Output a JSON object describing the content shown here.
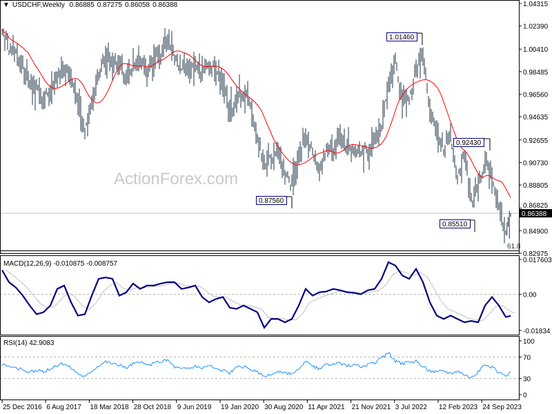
{
  "header": {
    "symbol": "USDCHF,Weekly",
    "open": "0.86885",
    "high": "0.87275",
    "low": "0.86058",
    "close": "0.86388"
  },
  "watermark": "ActionForex.com",
  "colors": {
    "bars": "#1f3346",
    "ma": "#ff0000",
    "macd": "#000080",
    "signal": "#c0c0c0",
    "rsi": "#1e90ff",
    "current_price_bg": "#000000"
  },
  "chart_data": [
    {
      "type": "bar",
      "title": "USDCHF,Weekly",
      "ylim": [
        0.82975,
        1.04315
      ],
      "y_ticks": [
        "1.04315",
        "1.02390",
        "1.00410",
        "0.98485",
        "0.96560",
        "0.94635",
        "0.92655",
        "0.90730",
        "0.88805",
        "0.86825",
        "0.84900",
        "0.82975"
      ],
      "current_price": "0.86388",
      "x_tick_labels": [
        "25 Dec 2016",
        "6 Aug 2017",
        "18 Mar 2018",
        "28 Oct 2018",
        "9 Jun 2019",
        "19 Jan 2020",
        "30 Aug 2020",
        "11 Apr 2021",
        "21 Nov 2021",
        "3 Jul 2022",
        "12 Feb 2023",
        "24 Sep 2023"
      ],
      "close": [
        1.0225,
        1.0049,
        1.0019,
        0.9931,
        0.9754,
        0.9695,
        0.9636,
        0.9695,
        0.9813,
        0.9872,
        0.9813,
        0.9577,
        0.9342,
        0.9577,
        0.9813,
        0.999,
        0.9931,
        0.9902,
        0.9784,
        0.9931,
        0.999,
        0.9872,
        0.996,
        1.0019,
        1.0166,
        0.999,
        0.9902,
        0.9872,
        0.9902,
        0.9872,
        0.9931,
        0.9872,
        0.9754,
        0.9518,
        0.9636,
        0.9695,
        0.9577,
        0.9283,
        0.9077,
        0.9106,
        0.9195,
        0.8989,
        0.89,
        0.9106,
        0.9342,
        0.9165,
        0.9018,
        0.9195,
        0.9195,
        0.9283,
        0.9224,
        0.9195,
        0.9165,
        0.9195,
        0.9283,
        0.9401,
        0.9754,
        0.9931,
        0.9636,
        0.9636,
        0.9872,
        0.999,
        0.9518,
        0.9342,
        0.9224,
        0.9313,
        0.8959,
        0.9165,
        0.8753,
        0.8871,
        0.9106,
        0.8989,
        0.8694,
        0.8458,
        0.8639
      ],
      "annotations": [
        {
          "label": "1.01460",
          "value": 1.0146
        },
        {
          "label": "0.92430",
          "value": 0.9243
        },
        {
          "label": "0.87560",
          "value": 0.8756
        },
        {
          "label": "0.85510",
          "value": 0.8551
        },
        {
          "label": "61.8",
          "value": 0.832
        }
      ],
      "series": [
        {
          "name": "MA",
          "type": "line"
        }
      ]
    },
    {
      "type": "line",
      "title": "MACD(12,26,9) -0.010875 -0.008757",
      "ylim": [
        -0.01834,
        0.017603
      ],
      "y_ticks": [
        "0.017603",
        "0.00",
        "-0.01834"
      ],
      "macd": [
        0.0122,
        0.0061,
        0.0034,
        -0.0007,
        -0.0057,
        -0.0101,
        -0.0091,
        -0.0057,
        0.0027,
        0.0044,
        -0.0041,
        -0.0108,
        -0.0101,
        -0.0007,
        0.0078,
        0.0085,
        0.0078,
        -0.0007,
        0.001,
        0.0054,
        0.0027,
        0.0044,
        0.0044,
        0.0054,
        0.0061,
        0.0061,
        0.0027,
        0.0034,
        0.0044,
        -0.0014,
        -0.0041,
        -0.0024,
        -0.0014,
        -0.0068,
        -0.0074,
        -0.0057,
        -0.0074,
        -0.0091,
        -0.0169,
        -0.0125,
        -0.0125,
        -0.0142,
        -0.0125,
        -0.0057,
        0.0027,
        -0.0007,
        0.001,
        0.0014,
        0.0027,
        0.002,
        0.001,
        0.0007,
        0.0,
        0.002,
        0.0027,
        0.0078,
        0.0162,
        0.0145,
        0.0095,
        0.0078,
        0.0128,
        0.0061,
        -0.0041,
        -0.0108,
        -0.0125,
        -0.0108,
        -0.0125,
        -0.0142,
        -0.0135,
        -0.0142,
        -0.0057,
        -0.0014,
        -0.0057,
        -0.0115,
        -0.0109
      ]
    },
    {
      "type": "line",
      "title": "RSI(14) 42.9083",
      "ylim": [
        0,
        100
      ],
      "y_ticks": [
        "100",
        "70",
        "30",
        "0"
      ],
      "levels": [
        70,
        30
      ],
      "values": [
        55,
        52,
        50,
        45,
        42,
        45,
        42,
        48,
        55,
        58,
        50,
        40,
        33,
        45,
        55,
        62,
        58,
        55,
        50,
        58,
        60,
        55,
        58,
        62,
        65,
        52,
        48,
        50,
        52,
        50,
        55,
        48,
        45,
        40,
        50,
        52,
        48,
        42,
        32,
        38,
        42,
        40,
        38,
        45,
        62,
        52,
        48,
        55,
        56,
        58,
        54,
        56,
        52,
        55,
        60,
        68,
        78,
        62,
        58,
        60,
        62,
        52,
        45,
        42,
        45,
        40,
        45,
        38,
        32,
        42,
        55,
        52,
        40,
        33,
        42.9
      ]
    }
  ]
}
